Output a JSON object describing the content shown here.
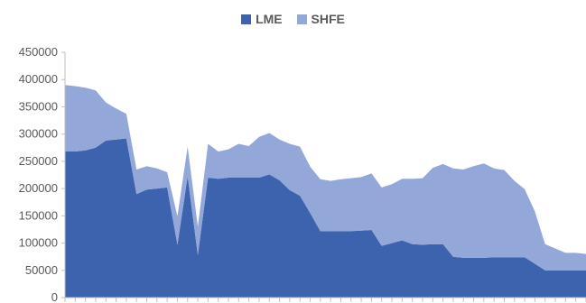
{
  "chart_data": {
    "type": "area",
    "stacked": true,
    "title": "",
    "xlabel": "",
    "ylabel": "",
    "ylim": [
      0,
      450000
    ],
    "yticks": [
      0,
      50000,
      100000,
      150000,
      200000,
      250000,
      300000,
      350000,
      400000,
      450000
    ],
    "grid": false,
    "legend_position": "top",
    "series": [
      {
        "name": "LME",
        "color": "#3d63ae",
        "values": [
          268000,
          268000,
          270000,
          275000,
          288000,
          290000,
          292000,
          190000,
          198000,
          200000,
          202000,
          97000,
          222000,
          78000,
          220000,
          218000,
          220000,
          220000,
          220000,
          220000,
          226000,
          215000,
          197000,
          187000,
          155000,
          122000,
          122000,
          122000,
          122000,
          123000,
          124000,
          95000,
          100000,
          105000,
          98000,
          97000,
          98000,
          98000,
          75000,
          73000,
          73000,
          73000,
          74000,
          74000,
          74000,
          74000,
          62000,
          50000,
          50000,
          50000,
          50000,
          50000
        ]
      },
      {
        "name": "SHFE",
        "color": "#93a7d8",
        "values": [
          122000,
          120000,
          115000,
          105000,
          70000,
          57000,
          45000,
          45000,
          43000,
          37000,
          28000,
          52000,
          55000,
          52000,
          62000,
          50000,
          52000,
          62000,
          58000,
          75000,
          76000,
          75000,
          85000,
          90000,
          85000,
          95000,
          92000,
          95000,
          97000,
          98000,
          104000,
          107000,
          108000,
          113000,
          120000,
          122000,
          140000,
          147000,
          162000,
          162000,
          168000,
          173000,
          163000,
          160000,
          140000,
          125000,
          96000,
          48000,
          40000,
          32000,
          32000,
          30000
        ]
      }
    ]
  }
}
